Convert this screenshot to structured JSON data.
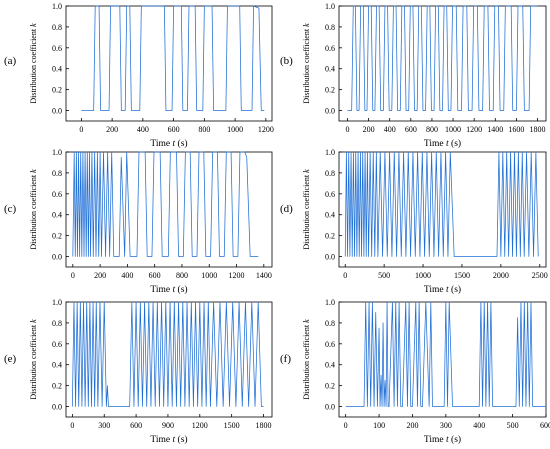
{
  "line_color": "#1f6fd6",
  "chart_data": [
    {
      "panel_label": "(a)",
      "type": "line",
      "xlabel": "Time",
      "xlabel_var": "t",
      "xlabel_unit": "(s)",
      "ylabel": "Distribution coefficient",
      "ylabel_var": "k",
      "xlim": [
        -100,
        1240
      ],
      "ylim": [
        -0.1,
        1.0
      ],
      "xticks": [
        0,
        200,
        400,
        600,
        800,
        1000,
        1200
      ],
      "yticks": [
        0.0,
        0.2,
        0.4,
        0.6,
        0.8,
        1.0
      ],
      "grid": false,
      "series": [
        {
          "x": [
            0,
            80,
            90,
            115,
            125,
            180,
            190,
            250,
            260,
            285,
            295,
            315,
            325,
            380,
            390,
            540,
            550,
            590,
            600,
            650,
            660,
            690,
            700,
            740,
            750,
            790,
            800,
            850,
            860,
            940,
            950,
            1030,
            1040,
            1110,
            1120,
            1155,
            1170,
            1190
          ],
          "y": [
            0,
            0,
            1,
            1,
            0,
            0,
            1,
            1,
            0,
            0,
            1,
            1,
            0,
            0,
            1,
            1,
            0,
            0,
            1,
            1,
            0,
            0,
            1,
            1,
            0,
            0,
            1,
            1,
            0,
            0,
            1,
            1,
            0,
            0,
            1,
            0.98,
            0,
            0
          ]
        }
      ]
    },
    {
      "panel_label": "(b)",
      "type": "line",
      "xlabel": "Time",
      "xlabel_var": "t",
      "xlabel_unit": "(s)",
      "ylabel": "Distribution coefficient",
      "ylabel_var": "k",
      "xlim": [
        -80,
        1880
      ],
      "ylim": [
        -0.1,
        1.0
      ],
      "xticks": [
        0,
        200,
        400,
        600,
        800,
        1000,
        1200,
        1400,
        1600,
        1800
      ],
      "yticks": [
        0.0,
        0.2,
        0.4,
        0.6,
        0.8,
        1.0
      ],
      "grid": false,
      "series": [
        {
          "x": [
            0,
            40,
            55,
            75,
            90,
            110,
            125,
            150,
            165,
            185,
            200,
            225,
            240,
            260,
            275,
            300,
            315,
            340,
            355,
            380,
            395,
            420,
            435,
            460,
            475,
            500,
            515,
            540,
            555,
            580,
            595,
            620,
            635,
            660,
            675,
            700,
            715,
            740,
            755,
            780,
            795,
            820,
            835,
            860,
            875,
            900,
            915,
            940,
            955,
            980,
            995,
            1030,
            1045,
            1080,
            1095,
            1130,
            1145,
            1180,
            1195,
            1230,
            1245,
            1280,
            1295,
            1330,
            1345,
            1380,
            1395,
            1430,
            1445,
            1480,
            1495,
            1550,
            1565,
            1600,
            1615,
            1660,
            1675,
            1720,
            1735,
            1800
          ],
          "y": [
            0,
            0,
            1,
            1,
            0,
            0,
            1,
            1,
            0,
            0,
            1,
            1,
            0,
            0,
            1,
            1,
            0,
            0,
            1,
            1,
            0,
            0,
            1,
            1,
            0,
            0,
            1,
            1,
            0,
            0,
            1,
            1,
            0,
            0,
            1,
            1,
            0,
            0,
            1,
            1,
            0,
            0,
            1,
            1,
            0,
            0,
            1,
            1,
            0,
            0,
            1,
            1,
            0,
            0,
            1,
            1,
            0,
            0,
            1,
            1,
            0,
            0,
            1,
            1,
            0,
            0,
            1,
            1,
            0,
            0,
            1,
            1,
            0,
            0,
            1,
            1,
            0,
            0,
            1,
            1
          ]
        }
      ]
    },
    {
      "panel_label": "(c)",
      "type": "line",
      "xlabel": "Time",
      "xlabel_var": "t",
      "xlabel_unit": "(s)",
      "ylabel": "Distribution coefficient",
      "ylabel_var": "k",
      "xlim": [
        -50,
        1460
      ],
      "ylim": [
        -0.1,
        1.0
      ],
      "xticks": [
        0,
        200,
        400,
        600,
        800,
        1000,
        1200,
        1400
      ],
      "yticks": [
        0.0,
        0.2,
        0.4,
        0.6,
        0.8,
        1.0
      ],
      "grid": false,
      "series": [
        {
          "x": [
            0,
            10,
            18,
            26,
            34,
            42,
            50,
            58,
            66,
            74,
            82,
            90,
            98,
            106,
            114,
            122,
            130,
            140,
            150,
            160,
            170,
            180,
            190,
            200,
            210,
            225,
            240,
            255,
            270,
            285,
            300,
            340,
            355,
            380,
            395,
            420,
            435,
            470,
            485,
            530,
            545,
            580,
            595,
            640,
            655,
            700,
            715,
            760,
            775,
            810,
            825,
            860,
            875,
            910,
            925,
            960,
            975,
            1010,
            1025,
            1060,
            1075,
            1110,
            1125,
            1160,
            1175,
            1210,
            1225,
            1260,
            1275,
            1300,
            1360
          ],
          "y": [
            0,
            1,
            0,
            1,
            0,
            1,
            0,
            1,
            0,
            1,
            0,
            1,
            0,
            1,
            0,
            1,
            0,
            1,
            0,
            1,
            0,
            1,
            0,
            1,
            0,
            1,
            0,
            1,
            0,
            1,
            0,
            0,
            0.95,
            0,
            1,
            0,
            0,
            0,
            1,
            1,
            0,
            0,
            1,
            1,
            0,
            0,
            1,
            1,
            0,
            0,
            1,
            1,
            0,
            0,
            1,
            1,
            0,
            0,
            1,
            1,
            0,
            0,
            1,
            1,
            0,
            0,
            1,
            1,
            0.95,
            0,
            0
          ]
        }
      ]
    },
    {
      "panel_label": "(d)",
      "type": "line",
      "xlabel": "Time",
      "xlabel_var": "t",
      "xlabel_unit": "(s)",
      "ylabel": "Distribution coefficient",
      "ylabel_var": "k",
      "xlim": [
        -80,
        2580
      ],
      "ylim": [
        -0.1,
        1.0
      ],
      "xticks": [
        0,
        500,
        1000,
        1500,
        2000,
        2500
      ],
      "yticks": [
        0.0,
        0.2,
        0.4,
        0.6,
        0.8,
        1.0
      ],
      "grid": false,
      "series": [
        {
          "x": [
            0,
            15,
            30,
            45,
            60,
            75,
            90,
            105,
            120,
            135,
            150,
            165,
            180,
            195,
            210,
            225,
            240,
            255,
            270,
            285,
            300,
            320,
            340,
            360,
            380,
            400,
            420,
            450,
            480,
            510,
            540,
            570,
            600,
            630,
            660,
            690,
            720,
            750,
            780,
            810,
            840,
            870,
            900,
            930,
            960,
            990,
            1020,
            1050,
            1080,
            1110,
            1140,
            1170,
            1200,
            1230,
            1260,
            1290,
            1320,
            1350,
            1400,
            1950,
            1975,
            2000,
            2025,
            2050,
            2075,
            2100,
            2125,
            2150,
            2175,
            2200,
            2225,
            2250,
            2275,
            2300,
            2330,
            2360,
            2390,
            2420,
            2450,
            2480
          ],
          "y": [
            0,
            1,
            0,
            1,
            0,
            1,
            0,
            1,
            0,
            1,
            0,
            1,
            0,
            1,
            0,
            1,
            0,
            1,
            0,
            1,
            0,
            1,
            0,
            1,
            0,
            1,
            0,
            1,
            0,
            1,
            0,
            1,
            0,
            1,
            0,
            1,
            0,
            1,
            0,
            1,
            0,
            1,
            0,
            1,
            0,
            1,
            0,
            1,
            0,
            1,
            0,
            1,
            0,
            1,
            0,
            1,
            0,
            1,
            0,
            0,
            1,
            0,
            1,
            0,
            1,
            0,
            1,
            0,
            1,
            0,
            1,
            0,
            1,
            0,
            1,
            0,
            1,
            0,
            1,
            0
          ]
        }
      ]
    },
    {
      "panel_label": "(e)",
      "type": "line",
      "xlabel": "Time",
      "xlabel_var": "t",
      "xlabel_unit": "(s)",
      "ylabel": "Distribution coefficient",
      "ylabel_var": "k",
      "xlim": [
        -60,
        1880
      ],
      "ylim": [
        -0.1,
        1.0
      ],
      "xticks": [
        0,
        300,
        600,
        900,
        1200,
        1500,
        1800
      ],
      "yticks": [
        0.0,
        0.2,
        0.4,
        0.6,
        0.8,
        1.0
      ],
      "grid": false,
      "series": [
        {
          "x": [
            0,
            15,
            30,
            45,
            60,
            75,
            90,
            105,
            120,
            135,
            150,
            165,
            180,
            195,
            210,
            225,
            240,
            260,
            280,
            300,
            320,
            330,
            340,
            350,
            540,
            560,
            580,
            600,
            620,
            640,
            660,
            680,
            700,
            720,
            740,
            760,
            780,
            800,
            820,
            840,
            860,
            880,
            900,
            920,
            940,
            960,
            980,
            1000,
            1020,
            1040,
            1060,
            1080,
            1100,
            1120,
            1140,
            1160,
            1180,
            1200,
            1220,
            1240,
            1260,
            1280,
            1300,
            1330,
            1360,
            1390,
            1420,
            1450,
            1480,
            1510,
            1540,
            1570,
            1600,
            1630,
            1660,
            1690,
            1720,
            1750,
            1780,
            1800
          ],
          "y": [
            0,
            1,
            0,
            1,
            0,
            1,
            0,
            1,
            0,
            1,
            0,
            1,
            0,
            1,
            0,
            1,
            0,
            1,
            0,
            1,
            0,
            0.2,
            0,
            0,
            0,
            1,
            0,
            1,
            0,
            1,
            0,
            1,
            0,
            1,
            0,
            1,
            0,
            1,
            0,
            1,
            0,
            1,
            0,
            1,
            0,
            1,
            0,
            1,
            0,
            1,
            0,
            1,
            0,
            1,
            0,
            1,
            0,
            1,
            0,
            1,
            0,
            1,
            0,
            1,
            0,
            1,
            0,
            1,
            0,
            1,
            0,
            1,
            0,
            1,
            0,
            1,
            0,
            1,
            0,
            0
          ]
        }
      ]
    },
    {
      "panel_label": "(f)",
      "type": "line",
      "xlabel": "Time",
      "xlabel_var": "t",
      "xlabel_unit": "(s)",
      "ylabel": "Distribution coefficient",
      "ylabel_var": "k",
      "xlim": [
        -20,
        600
      ],
      "ylim": [
        -0.1,
        1.0
      ],
      "xticks": [
        0,
        100,
        200,
        300,
        400,
        500,
        600
      ],
      "yticks": [
        0.0,
        0.2,
        0.4,
        0.6,
        0.8,
        1.0
      ],
      "grid": false,
      "series": [
        {
          "x": [
            0,
            55,
            60,
            65,
            70,
            75,
            80,
            85,
            90,
            95,
            100,
            103,
            106,
            109,
            112,
            115,
            118,
            121,
            124,
            127,
            130,
            140,
            145,
            150,
            155,
            160,
            165,
            170,
            180,
            185,
            190,
            195,
            200,
            210,
            215,
            220,
            225,
            230,
            240,
            250,
            255,
            260,
            270,
            295,
            300,
            305,
            310,
            320,
            400,
            405,
            410,
            415,
            420,
            425,
            430,
            435,
            440,
            445,
            510,
            515,
            520,
            525,
            530,
            535,
            540,
            545,
            550,
            555,
            560,
            600
          ],
          "y": [
            0,
            0,
            1,
            0,
            1,
            0,
            1,
            0,
            0.9,
            0,
            0.75,
            0,
            0.3,
            0,
            0.8,
            0,
            0.25,
            0,
            1,
            0,
            0,
            1,
            0,
            1,
            0,
            1,
            0,
            0,
            1,
            0,
            1,
            0,
            0,
            1,
            0,
            1,
            0,
            0,
            1,
            0,
            1,
            0,
            0,
            0,
            1,
            0,
            1,
            0,
            0,
            1,
            0,
            1,
            0,
            1,
            0,
            1,
            0,
            0,
            0,
            0.85,
            0,
            1,
            0,
            1,
            0,
            1,
            0,
            1,
            0,
            0
          ]
        }
      ]
    }
  ]
}
